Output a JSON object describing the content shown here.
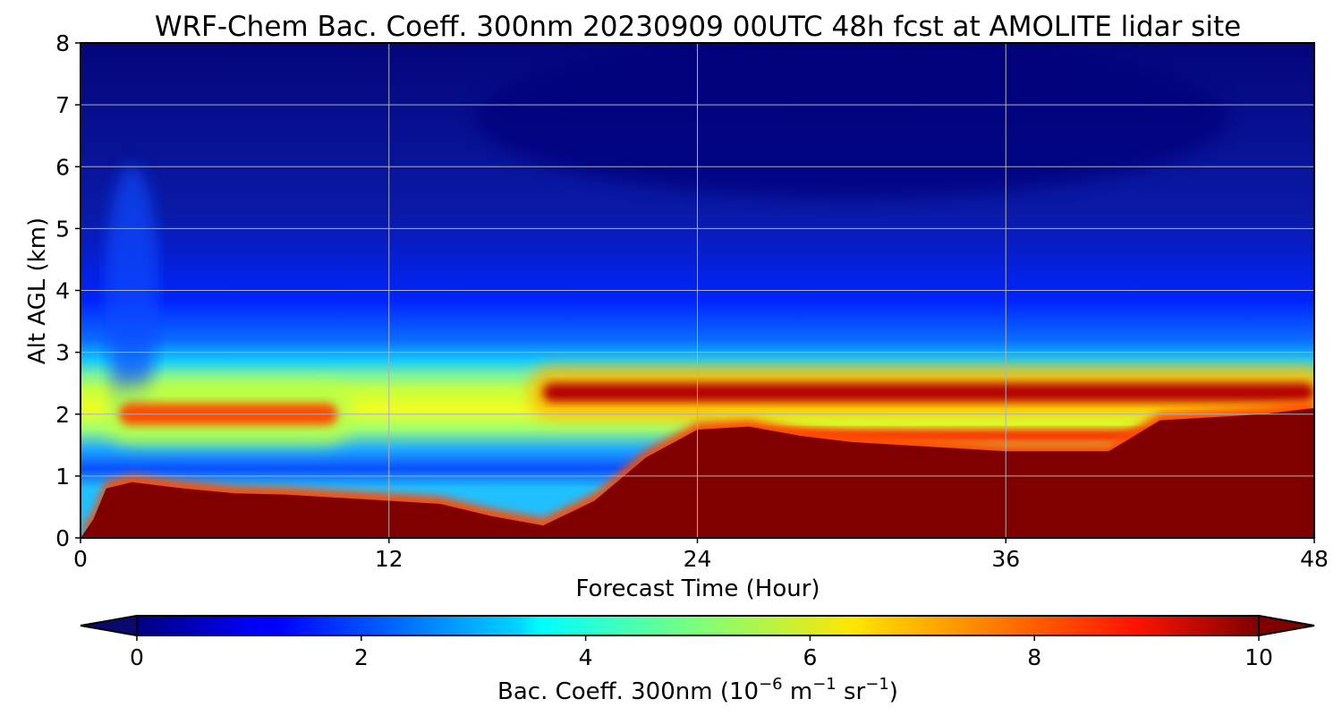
{
  "chart_data": {
    "type": "heatmap",
    "title": "WRF-Chem Bac. Coeff. 300nm  20230909 00UTC 48h fcst at AMOLITE lidar site",
    "xlabel": "Forecast Time (Hour)",
    "ylabel": "Alt AGL (km)",
    "xlim": [
      0,
      48
    ],
    "ylim": [
      0,
      8
    ],
    "xticks": [
      "0",
      "12",
      "24",
      "36",
      "48"
    ],
    "yticks": [
      "0",
      "1",
      "2",
      "3",
      "4",
      "5",
      "6",
      "7",
      "8"
    ],
    "grid": true,
    "colormap": "jet",
    "colorbar": {
      "label_main": "Bac. Coeff. 300nm  (10",
      "label_exp1": "−6",
      "label_mid": " m",
      "label_exp2": "−1",
      "label_mid2": " sr",
      "label_exp3": "−1",
      "label_end": ")",
      "range": [
        0,
        10
      ],
      "ticks": [
        "0",
        "2",
        "4",
        "6",
        "8",
        "10"
      ],
      "extend": "both",
      "under_color": "#0a0a6e",
      "over_color": "#800000"
    },
    "x": [
      0,
      0.5,
      1,
      2,
      4,
      6,
      8,
      10,
      12,
      14,
      16,
      18,
      20,
      22,
      24,
      26,
      28,
      30,
      32,
      34,
      36,
      38,
      40,
      42,
      44,
      46,
      48
    ],
    "features": [
      {
        "name": "surface-layer",
        "level": 10,
        "top": [
          0,
          0.3,
          0.8,
          0.9,
          0.8,
          0.72,
          0.7,
          0.65,
          0.6,
          0.55,
          0.35,
          0.2,
          0.6,
          1.3,
          1.75,
          1.8,
          1.65,
          1.55,
          1.5,
          1.45,
          1.4,
          1.4,
          1.4,
          1.9,
          1.95,
          2.0,
          2.1
        ]
      },
      {
        "name": "smoke-layer-2km",
        "level": 8,
        "start": 1.5,
        "end": 10,
        "center": 2.0,
        "thickness": 0.35
      },
      {
        "name": "smoke-layer-2.4km",
        "level": 9.5,
        "start": 18,
        "end": 48,
        "center": 2.35,
        "thickness": 0.3
      },
      {
        "name": "smoke-layer-1.6km",
        "level": 8.5,
        "start": 25,
        "end": 42,
        "center": 1.65,
        "thickness": 0.2
      }
    ]
  }
}
